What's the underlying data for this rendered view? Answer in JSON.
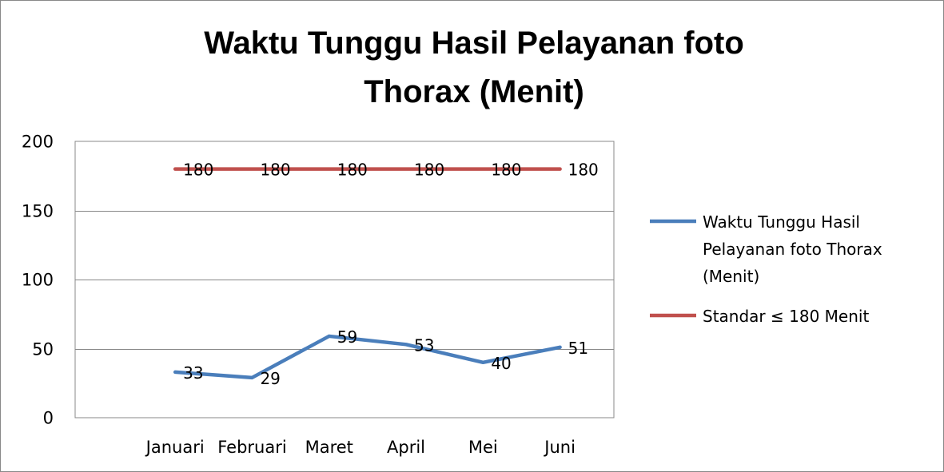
{
  "chart_data": {
    "type": "line",
    "title_lines": [
      "Waktu Tunggu Hasil Pelayanan foto",
      "Thorax (Menit)"
    ],
    "categories": [
      "Januari",
      "Februari",
      "Maret",
      "April",
      "Mei",
      "Juni"
    ],
    "ylim": [
      0,
      200
    ],
    "yticks": [
      0,
      50,
      100,
      150,
      200
    ],
    "grid": true,
    "legend_position": "right",
    "series": [
      {
        "name": "Waktu Tunggu Hasil Pelayanan foto Thorax (Menit)",
        "legend_lines": [
          "Waktu Tunggu Hasil",
          "Pelayanan foto Thorax",
          "(Menit)"
        ],
        "values": [
          33,
          29,
          59,
          53,
          40,
          51
        ],
        "color": "#4a7ebb"
      },
      {
        "name": "Standar ≤ 180 Menit",
        "legend_lines": [
          "Standar ≤ 180 Menit"
        ],
        "values": [
          180,
          180,
          180,
          180,
          180,
          180
        ],
        "color": "#c0504d"
      }
    ]
  }
}
